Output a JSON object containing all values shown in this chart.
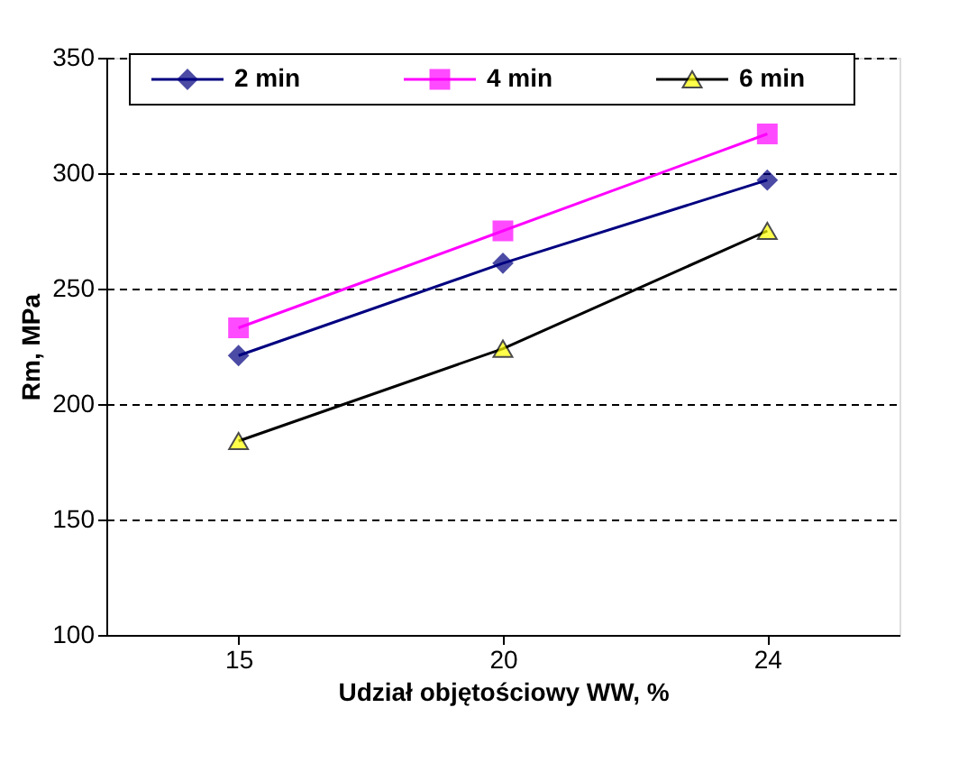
{
  "chart_data": {
    "type": "line",
    "xlabel": "Udział objętościowy WW,  %",
    "ylabel": "Rm,  MPa",
    "categories": [
      "15",
      "20",
      "24"
    ],
    "series": [
      {
        "name": "2 min",
        "color": "#000080",
        "colors": [
          "#000080",
          "#000080",
          "#000080"
        ],
        "marker": "diamond",
        "values": [
          221,
          261,
          297
        ]
      },
      {
        "name": "4 min",
        "color": "#ff00ff",
        "colors": [
          "#ff00ff",
          "#ff00ff",
          "#ff00ff"
        ],
        "marker": "square",
        "values": [
          233,
          275,
          317
        ]
      },
      {
        "name": "6 min",
        "color": "#000000",
        "colors": [
          "#ffff00",
          "#ffff00",
          "#ffff00"
        ],
        "marker": "triangle",
        "values": [
          184,
          224,
          275
        ]
      }
    ],
    "ylim": [
      100,
      350
    ],
    "yticks": [
      100,
      150,
      200,
      250,
      300,
      350
    ],
    "grid": "y",
    "legend": "top",
    "line_style": "solid"
  }
}
